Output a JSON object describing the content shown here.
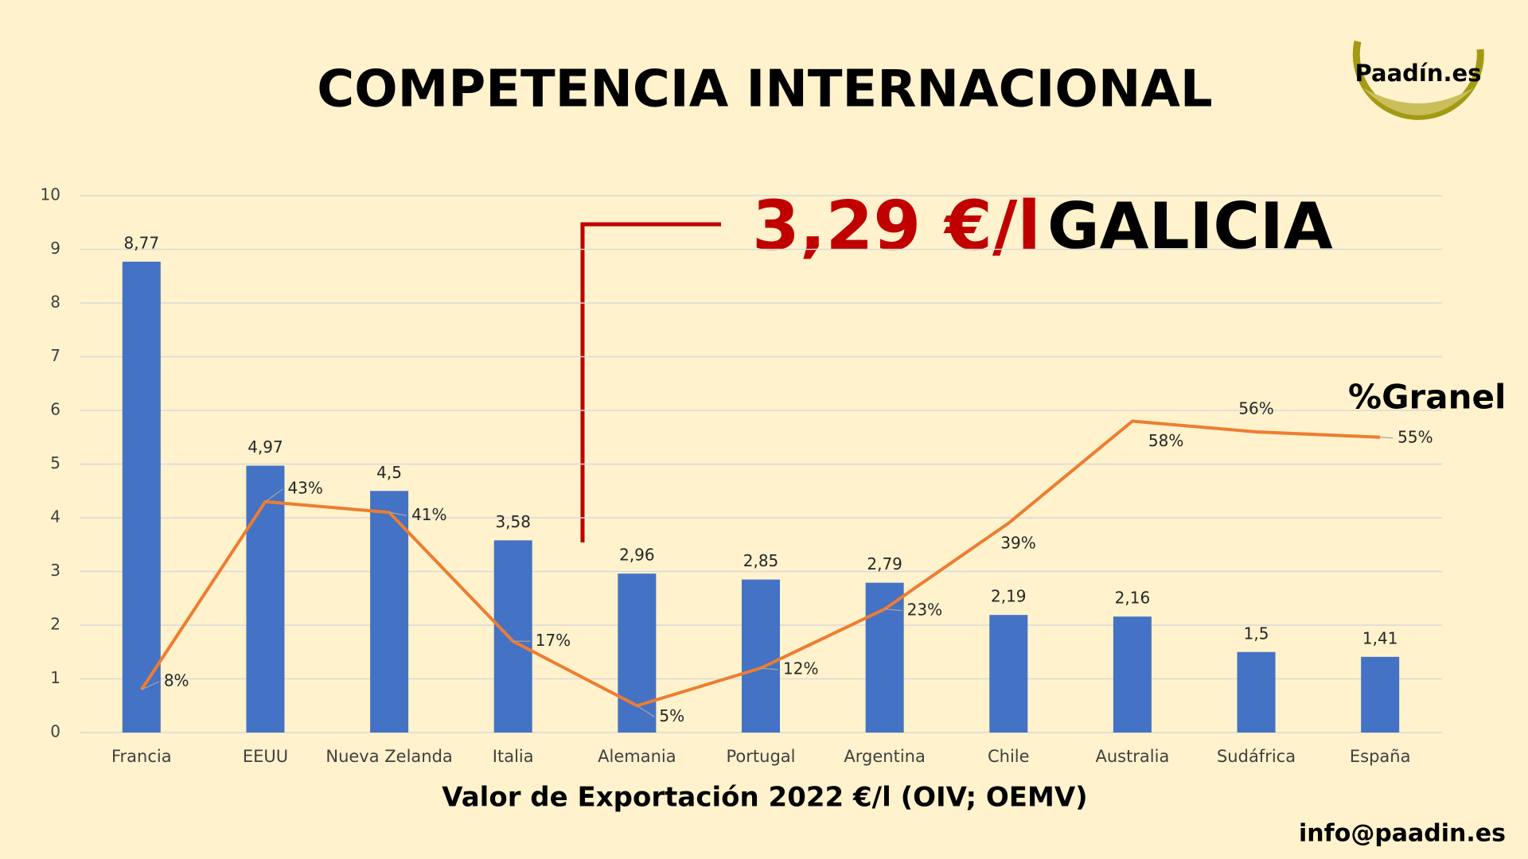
{
  "chart_data": {
    "type": "bar",
    "title": "COMPETENCIA INTERNACIONAL",
    "x_label": "Valor de Exportación 2022 €/l (OIV; OEMV)",
    "categories": [
      "Francia",
      "EEUU",
      "Nueva Zelanda",
      "Italia",
      "Alemania",
      "Portugal",
      "Argentina",
      "Chile",
      "Australia",
      "Sudáfrica",
      "España"
    ],
    "values": [
      8.77,
      4.97,
      4.5,
      3.58,
      2.96,
      2.85,
      2.79,
      2.19,
      2.16,
      1.5,
      1.41
    ],
    "value_labels": [
      "8,77",
      "4,97",
      "4,5",
      "3,58",
      "2,96",
      "2,85",
      "2,79",
      "2,19",
      "2,16",
      "1,5",
      "1,41"
    ],
    "color": "#4472c4",
    "line": {
      "type": "line",
      "name": "%Granel",
      "color": "#ed7d31",
      "axis": "y2",
      "values": [
        8,
        43,
        41,
        17,
        5,
        12,
        23,
        39,
        58,
        56,
        55
      ],
      "value_labels": [
        "8%",
        "43%",
        "41%",
        "17%",
        "5%",
        "12%",
        "23%",
        "39%",
        "58%",
        "56%",
        "55%"
      ]
    },
    "ylim": [
      0,
      10
    ],
    "yticks": [
      0,
      1,
      2,
      3,
      4,
      5,
      6,
      7,
      8,
      9,
      10
    ],
    "y2lim": [
      0,
      100
    ],
    "grid": true
  },
  "annotations": {
    "galicia_value": "3,29 €/l",
    "galicia_label": "GALICIA",
    "logo": "Paadín.es",
    "contact": "info@paadin.es"
  }
}
